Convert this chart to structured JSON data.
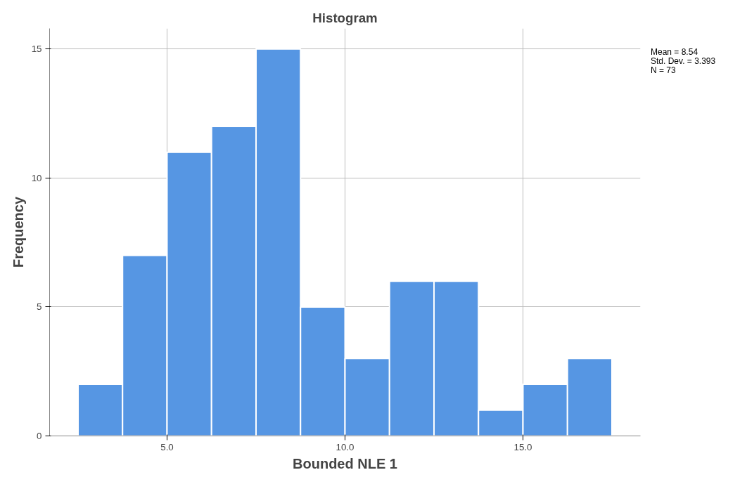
{
  "chart_data": {
    "type": "histogram",
    "title": "Histogram",
    "xlabel": "Bounded NLE 1",
    "ylabel": "Frequency",
    "bins": [
      2.5,
      3.75,
      5.0,
      6.25,
      7.5,
      8.75,
      10.0,
      11.25,
      12.5,
      13.75,
      15.0,
      16.25,
      17.5
    ],
    "values": [
      2,
      7,
      11,
      12,
      15,
      5,
      3,
      6,
      6,
      1,
      2,
      3
    ],
    "color": "#5696e3",
    "xlim": [
      1.7,
      18.3
    ],
    "ylim": [
      0,
      15.8
    ],
    "xticks": [
      {
        "value": 5,
        "label": "5.0"
      },
      {
        "value": 10,
        "label": "10.0"
      },
      {
        "value": 15,
        "label": "15.0"
      }
    ],
    "yticks": [
      0,
      5,
      10,
      15
    ],
    "grid": true,
    "annotations": [
      "Mean = 8.54",
      "Std. Dev. = 3.393",
      "N = 73"
    ]
  }
}
